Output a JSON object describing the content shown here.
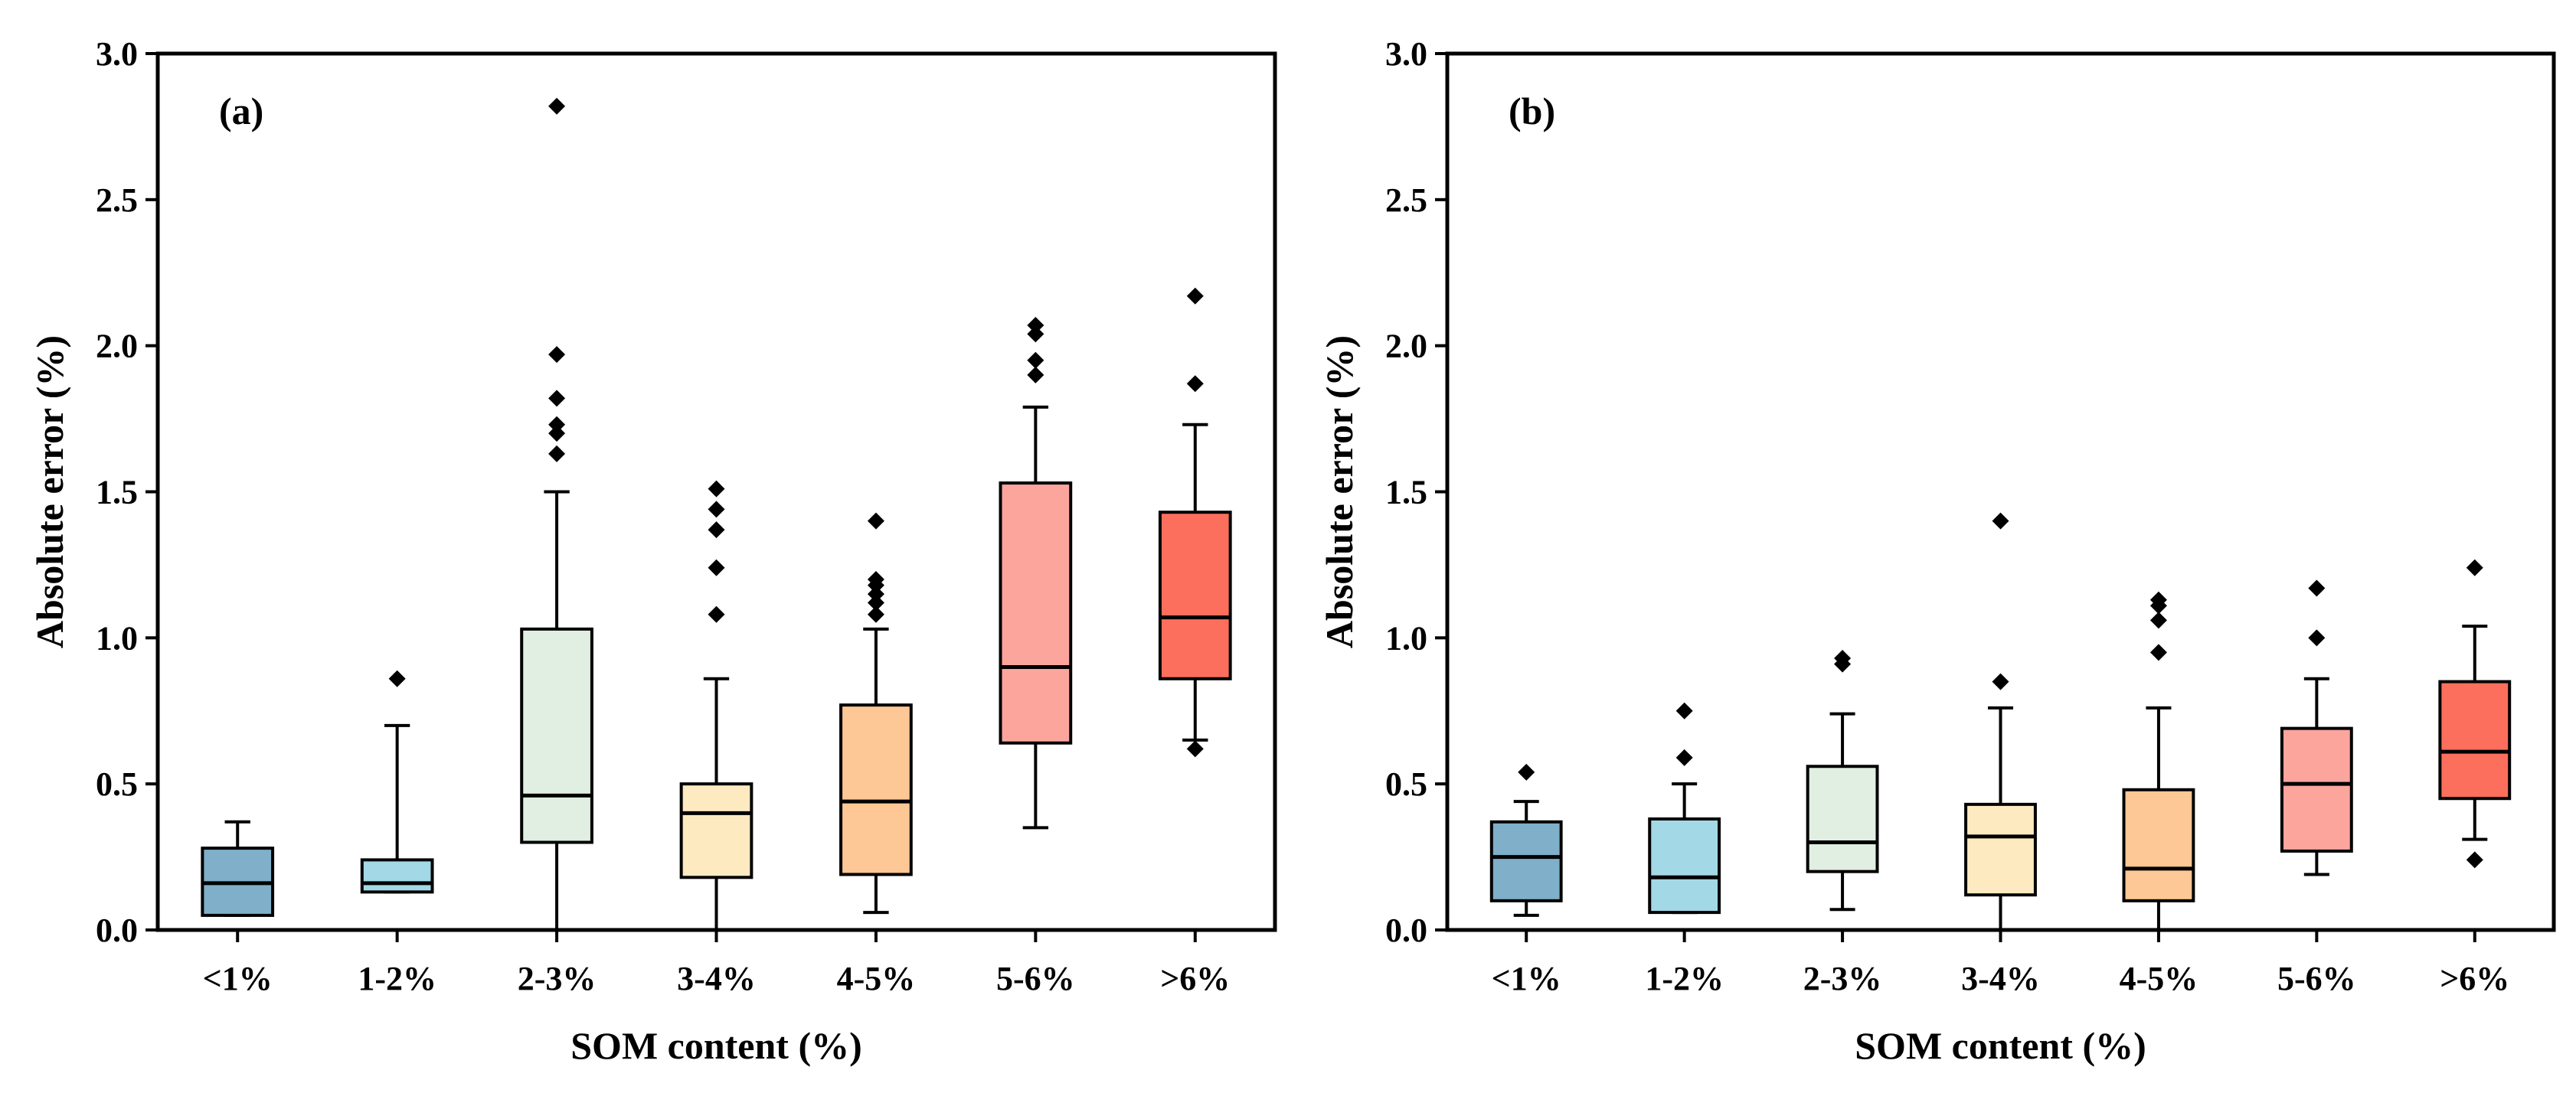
{
  "chart_data": [
    {
      "type": "box",
      "panel_label": "(a)",
      "xlabel": "SOM content (%)",
      "ylabel": "Absolute error (%)",
      "ylim": [
        0,
        3.0
      ],
      "yticks": [
        "0.0",
        "0.5",
        "1.0",
        "1.5",
        "2.0",
        "2.5",
        "3.0"
      ],
      "grid": false,
      "categories": [
        "<1%",
        "1-2%",
        "2-3%",
        "3-4%",
        "4-5%",
        "5-6%",
        ">6%"
      ],
      "colors": [
        "#7fafc9",
        "#a3d8e6",
        "#e1eee2",
        "#fdeac0",
        "#fdc895",
        "#fba59d",
        "#fb6f5c"
      ],
      "boxes": [
        {
          "whisker_low": 0.05,
          "q1": 0.05,
          "median": 0.16,
          "q3": 0.28,
          "whisker_high": 0.37,
          "outliers": []
        },
        {
          "whisker_low": 0.13,
          "q1": 0.13,
          "median": 0.16,
          "q3": 0.24,
          "whisker_high": 0.7,
          "outliers": [
            0.86
          ]
        },
        {
          "whisker_low": 0.0,
          "q1": 0.3,
          "median": 0.46,
          "q3": 1.03,
          "whisker_high": 1.5,
          "outliers": [
            1.63,
            1.7,
            1.73,
            1.82,
            1.97,
            2.82
          ]
        },
        {
          "whisker_low": 0.0,
          "q1": 0.18,
          "median": 0.4,
          "q3": 0.5,
          "whisker_high": 0.86,
          "outliers": [
            1.08,
            1.24,
            1.37,
            1.44,
            1.51
          ]
        },
        {
          "whisker_low": 0.06,
          "q1": 0.19,
          "median": 0.44,
          "q3": 0.77,
          "whisker_high": 1.03,
          "outliers": [
            1.08,
            1.12,
            1.15,
            1.18,
            1.2,
            1.4
          ]
        },
        {
          "whisker_low": 0.35,
          "q1": 0.64,
          "median": 0.9,
          "q3": 1.53,
          "whisker_high": 1.79,
          "outliers": [
            1.9,
            1.95,
            2.04,
            2.07
          ]
        },
        {
          "whisker_low": 0.65,
          "q1": 0.86,
          "median": 1.07,
          "q3": 1.43,
          "whisker_high": 1.73,
          "outliers": [
            0.62,
            1.87,
            2.17
          ]
        }
      ]
    },
    {
      "type": "box",
      "panel_label": "(b)",
      "xlabel": "SOM content (%)",
      "ylabel": "Absolute error (%)",
      "ylim": [
        0,
        3.0
      ],
      "yticks": [
        "0.0",
        "0.5",
        "1.0",
        "1.5",
        "2.0",
        "2.5",
        "3.0"
      ],
      "grid": false,
      "categories": [
        "<1%",
        "1-2%",
        "2-3%",
        "3-4%",
        "4-5%",
        "5-6%",
        ">6%"
      ],
      "colors": [
        "#7fafc9",
        "#a3d8e6",
        "#e1eee2",
        "#fdeac0",
        "#fdc895",
        "#fba59d",
        "#fb6f5c"
      ],
      "boxes": [
        {
          "whisker_low": 0.05,
          "q1": 0.1,
          "median": 0.25,
          "q3": 0.37,
          "whisker_high": 0.44,
          "outliers": [
            0.54
          ]
        },
        {
          "whisker_low": 0.06,
          "q1": 0.06,
          "median": 0.18,
          "q3": 0.38,
          "whisker_high": 0.5,
          "outliers": [
            0.59,
            0.75
          ]
        },
        {
          "whisker_low": 0.07,
          "q1": 0.2,
          "median": 0.3,
          "q3": 0.56,
          "whisker_high": 0.74,
          "outliers": [
            0.91,
            0.93
          ]
        },
        {
          "whisker_low": 0.0,
          "q1": 0.12,
          "median": 0.32,
          "q3": 0.43,
          "whisker_high": 0.76,
          "outliers": [
            0.85,
            1.4
          ]
        },
        {
          "whisker_low": 0.0,
          "q1": 0.1,
          "median": 0.21,
          "q3": 0.48,
          "whisker_high": 0.76,
          "outliers": [
            0.95,
            1.06,
            1.11,
            1.13
          ]
        },
        {
          "whisker_low": 0.19,
          "q1": 0.27,
          "median": 0.5,
          "q3": 0.69,
          "whisker_high": 0.86,
          "outliers": [
            1.0,
            1.17
          ]
        },
        {
          "whisker_low": 0.31,
          "q1": 0.45,
          "median": 0.61,
          "q3": 0.85,
          "whisker_high": 1.04,
          "outliers": [
            0.24,
            1.24
          ]
        }
      ]
    }
  ]
}
